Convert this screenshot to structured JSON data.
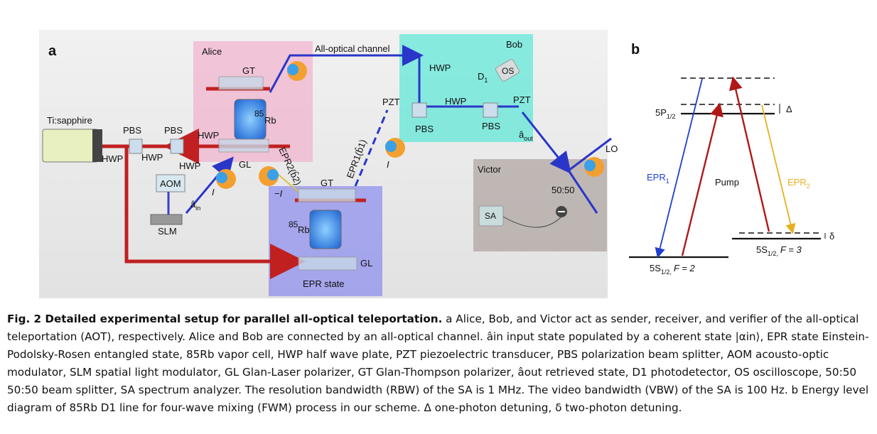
{
  "panel_a": {
    "letter": "a",
    "zones": {
      "alice": "Alice",
      "bob": "Bob",
      "victor": "Victor",
      "epr_state": "EPR state"
    },
    "channel": "All-optical channel",
    "laser": "Ti:sapphire",
    "components": {
      "pbs": "PBS",
      "hwp": "HWP",
      "aom": "AOM",
      "slm": "SLM",
      "gt": "GT",
      "gl": "GL",
      "pzt": "PZT",
      "d1": "D",
      "d1_sub": "1",
      "os": "OS",
      "sa": "SA",
      "lo": "LO",
      "bs": "50:50",
      "rb_sup": "85",
      "rb": "Rb"
    },
    "beam_labels": {
      "a_in": "â",
      "a_in_sub": "in",
      "a_out": "â",
      "a_out_sub": "out",
      "epr1": "EPR1(b̂1)",
      "epr2": "EPR2(b̂2)",
      "i_pos": "I",
      "i_neg": "−I"
    }
  },
  "panel_b": {
    "letter": "b",
    "levels": {
      "excited": "5P",
      "excited_sub": "1/2",
      "ground2": "5S",
      "ground2_sub": "1/2,",
      "ground2_f": "F = 2",
      "ground3": "5S",
      "ground3_sub": "1/2,",
      "ground3_f": "F = 3"
    },
    "detunings": {
      "one_photon": "Δ",
      "two_photon": "δ"
    },
    "transitions": {
      "epr1": "EPR",
      "epr1_sub": "1",
      "pump": "Pump",
      "epr2": "EPR",
      "epr2_sub": "2"
    },
    "colors": {
      "epr1": "#1f3fd0",
      "pump": "#b01818",
      "epr2": "#e8b020"
    }
  },
  "caption": {
    "title": "Fig. 2 Detailed experimental setup for parallel all-optical teleportation.",
    "text": "a Alice, Bob, and Victor act as sender, receiver, and verifier of the all-optical teleportation (AOT), respectively. Alice and Bob are connected by an all-optical channel. âin input state populated by a coherent state |αin⟩, EPR state Einstein-Podolsky-Rosen entangled state, 85Rb vapor cell, HWP half wave plate, PZT piezoelectric transducer, PBS polarization beam splitter, AOM acousto-optic modulator, SLM spatial light modulator, GL Glan-Laser polarizer, GT Glan-Thompson polarizer, âout retrieved state, D1 photodetector, OS oscilloscope, 50:50 50:50 beam splitter, SA spectrum analyzer. The resolution bandwidth (RBW) of the SA is 1 MHz. The video bandwidth (VBW) of the SA is 100 Hz. b Energy level diagram of 85Rb D1 line for four-wave mixing (FWM) process in our scheme. Δ one-photon detuning, δ two-photon detuning."
  }
}
